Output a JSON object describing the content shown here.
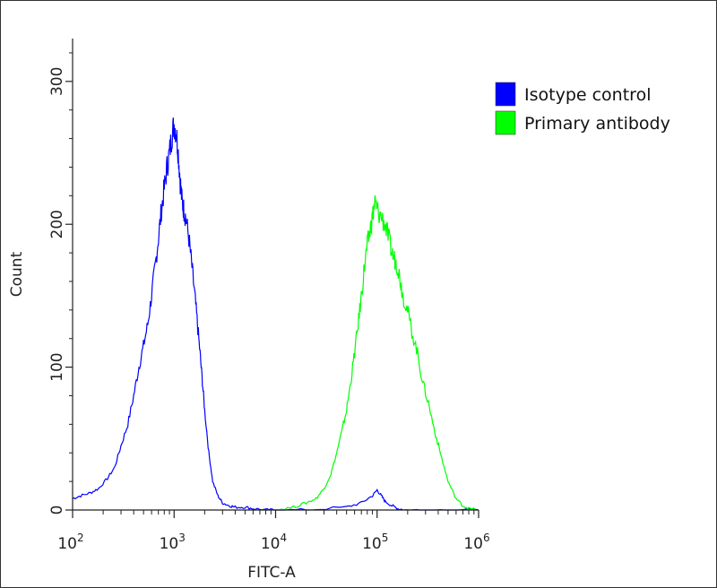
{
  "chart_data": {
    "type": "line",
    "title": "",
    "xlabel": "FITC-A",
    "ylabel": "Count",
    "xscale": "log",
    "xlim": [
      100,
      1000000
    ],
    "ylim": [
      0,
      330
    ],
    "x_ticks": [
      {
        "value": 100,
        "base": "10",
        "exp": "2"
      },
      {
        "value": 1000,
        "base": "10",
        "exp": "3"
      },
      {
        "value": 10000,
        "base": "10",
        "exp": "4"
      },
      {
        "value": 100000,
        "base": "10",
        "exp": "5"
      },
      {
        "value": 1000000,
        "base": "10",
        "exp": "6"
      }
    ],
    "y_ticks": [
      {
        "value": 0,
        "label": "0"
      },
      {
        "value": 100,
        "label": "100"
      },
      {
        "value": 200,
        "label": "200"
      },
      {
        "value": 300,
        "label": "300"
      }
    ],
    "grid": false,
    "legend_position": "top-right",
    "series": [
      {
        "name": "Isotype control",
        "color": "#0000ff",
        "x": [
          100,
          120,
          150,
          180,
          220,
          260,
          300,
          350,
          400,
          450,
          500,
          550,
          600,
          650,
          700,
          750,
          800,
          850,
          900,
          950,
          1000,
          1050,
          1100,
          1150,
          1200,
          1250,
          1300,
          1400,
          1500,
          1600,
          1700,
          1800,
          1900,
          2000,
          2200,
          2400,
          2700,
          3000,
          3500,
          4000,
          5000,
          6000,
          8000,
          10000,
          20000,
          50000,
          70000,
          90000,
          100000,
          110000,
          120000,
          140000,
          160000,
          200000,
          300000,
          500000,
          1000000
        ],
        "y": [
          8,
          10,
          12,
          15,
          22,
          30,
          45,
          60,
          80,
          100,
          115,
          130,
          150,
          170,
          190,
          210,
          225,
          240,
          250,
          262,
          270,
          265,
          250,
          230,
          215,
          210,
          205,
          190,
          170,
          150,
          130,
          110,
          90,
          70,
          40,
          20,
          10,
          5,
          3,
          2,
          2,
          1,
          0,
          0,
          0,
          2,
          5,
          10,
          14,
          10,
          6,
          3,
          1,
          0,
          0,
          0,
          0
        ]
      },
      {
        "name": "Primary antibody",
        "color": "#00ff00",
        "x": [
          10000,
          15000,
          20000,
          25000,
          30000,
          35000,
          40000,
          45000,
          50000,
          55000,
          60000,
          65000,
          70000,
          75000,
          80000,
          85000,
          90000,
          95000,
          100000,
          110000,
          120000,
          130000,
          140000,
          150000,
          160000,
          170000,
          180000,
          200000,
          220000,
          250000,
          280000,
          320000,
          370000,
          420000,
          500000,
          600000,
          700000,
          800000,
          1000000
        ],
        "y": [
          0,
          2,
          5,
          8,
          15,
          25,
          40,
          55,
          70,
          90,
          110,
          130,
          150,
          170,
          185,
          195,
          205,
          215,
          210,
          205,
          200,
          190,
          180,
          175,
          170,
          160,
          150,
          140,
          125,
          110,
          90,
          75,
          55,
          40,
          20,
          8,
          3,
          1,
          0
        ]
      }
    ]
  }
}
